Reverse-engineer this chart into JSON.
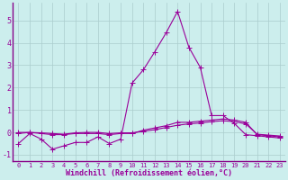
{
  "xlabel": "Windchill (Refroidissement éolien,°C)",
  "background_color": "#cceeed",
  "grid_color": "#aacccc",
  "line_color": "#990099",
  "spine_color": "#880088",
  "xlim_min": -0.5,
  "xlim_max": 23.5,
  "ylim_min": -1.3,
  "ylim_max": 5.8,
  "xticks": [
    0,
    1,
    2,
    3,
    4,
    5,
    6,
    7,
    8,
    9,
    10,
    11,
    12,
    13,
    14,
    15,
    16,
    17,
    18,
    19,
    20,
    21,
    22,
    23
  ],
  "yticks": [
    -1,
    0,
    1,
    2,
    3,
    4,
    5
  ],
  "series1_x": [
    0,
    1,
    2,
    3,
    4,
    5,
    6,
    7,
    8,
    9,
    10,
    11,
    12,
    13,
    14,
    15,
    16,
    17,
    18,
    19,
    20,
    21,
    22,
    23
  ],
  "series1_y": [
    -0.5,
    -0.05,
    -0.3,
    -0.75,
    -0.6,
    -0.45,
    -0.45,
    -0.2,
    -0.5,
    -0.3,
    2.2,
    2.8,
    3.6,
    4.45,
    5.4,
    3.8,
    2.9,
    0.75,
    0.75,
    0.4,
    -0.1,
    -0.15,
    -0.2,
    -0.25
  ],
  "series2_x": [
    0,
    1,
    2,
    3,
    4,
    5,
    6,
    7,
    8,
    9,
    10,
    11,
    12,
    13,
    14,
    15,
    16,
    17,
    18,
    19,
    20,
    21,
    22,
    23
  ],
  "series2_y": [
    -0.05,
    0.0,
    -0.05,
    -0.1,
    -0.1,
    -0.05,
    -0.05,
    -0.05,
    -0.1,
    -0.05,
    -0.05,
    0.1,
    0.2,
    0.3,
    0.45,
    0.45,
    0.5,
    0.55,
    0.6,
    0.55,
    0.45,
    -0.1,
    -0.15,
    -0.2
  ],
  "series3_x": [
    0,
    1,
    2,
    3,
    4,
    5,
    6,
    7,
    8,
    9,
    10,
    11,
    12,
    13,
    14,
    15,
    16,
    17,
    18,
    19,
    20,
    21,
    22,
    23
  ],
  "series3_y": [
    0.0,
    0.0,
    -0.02,
    -0.05,
    -0.08,
    -0.02,
    0.0,
    0.0,
    -0.05,
    -0.02,
    -0.02,
    0.05,
    0.12,
    0.22,
    0.32,
    0.38,
    0.42,
    0.48,
    0.52,
    0.48,
    0.38,
    -0.08,
    -0.12,
    -0.16
  ],
  "marker": "+",
  "markersize": 4,
  "linewidth": 0.8,
  "tick_fontsize": 5,
  "xlabel_fontsize": 6
}
